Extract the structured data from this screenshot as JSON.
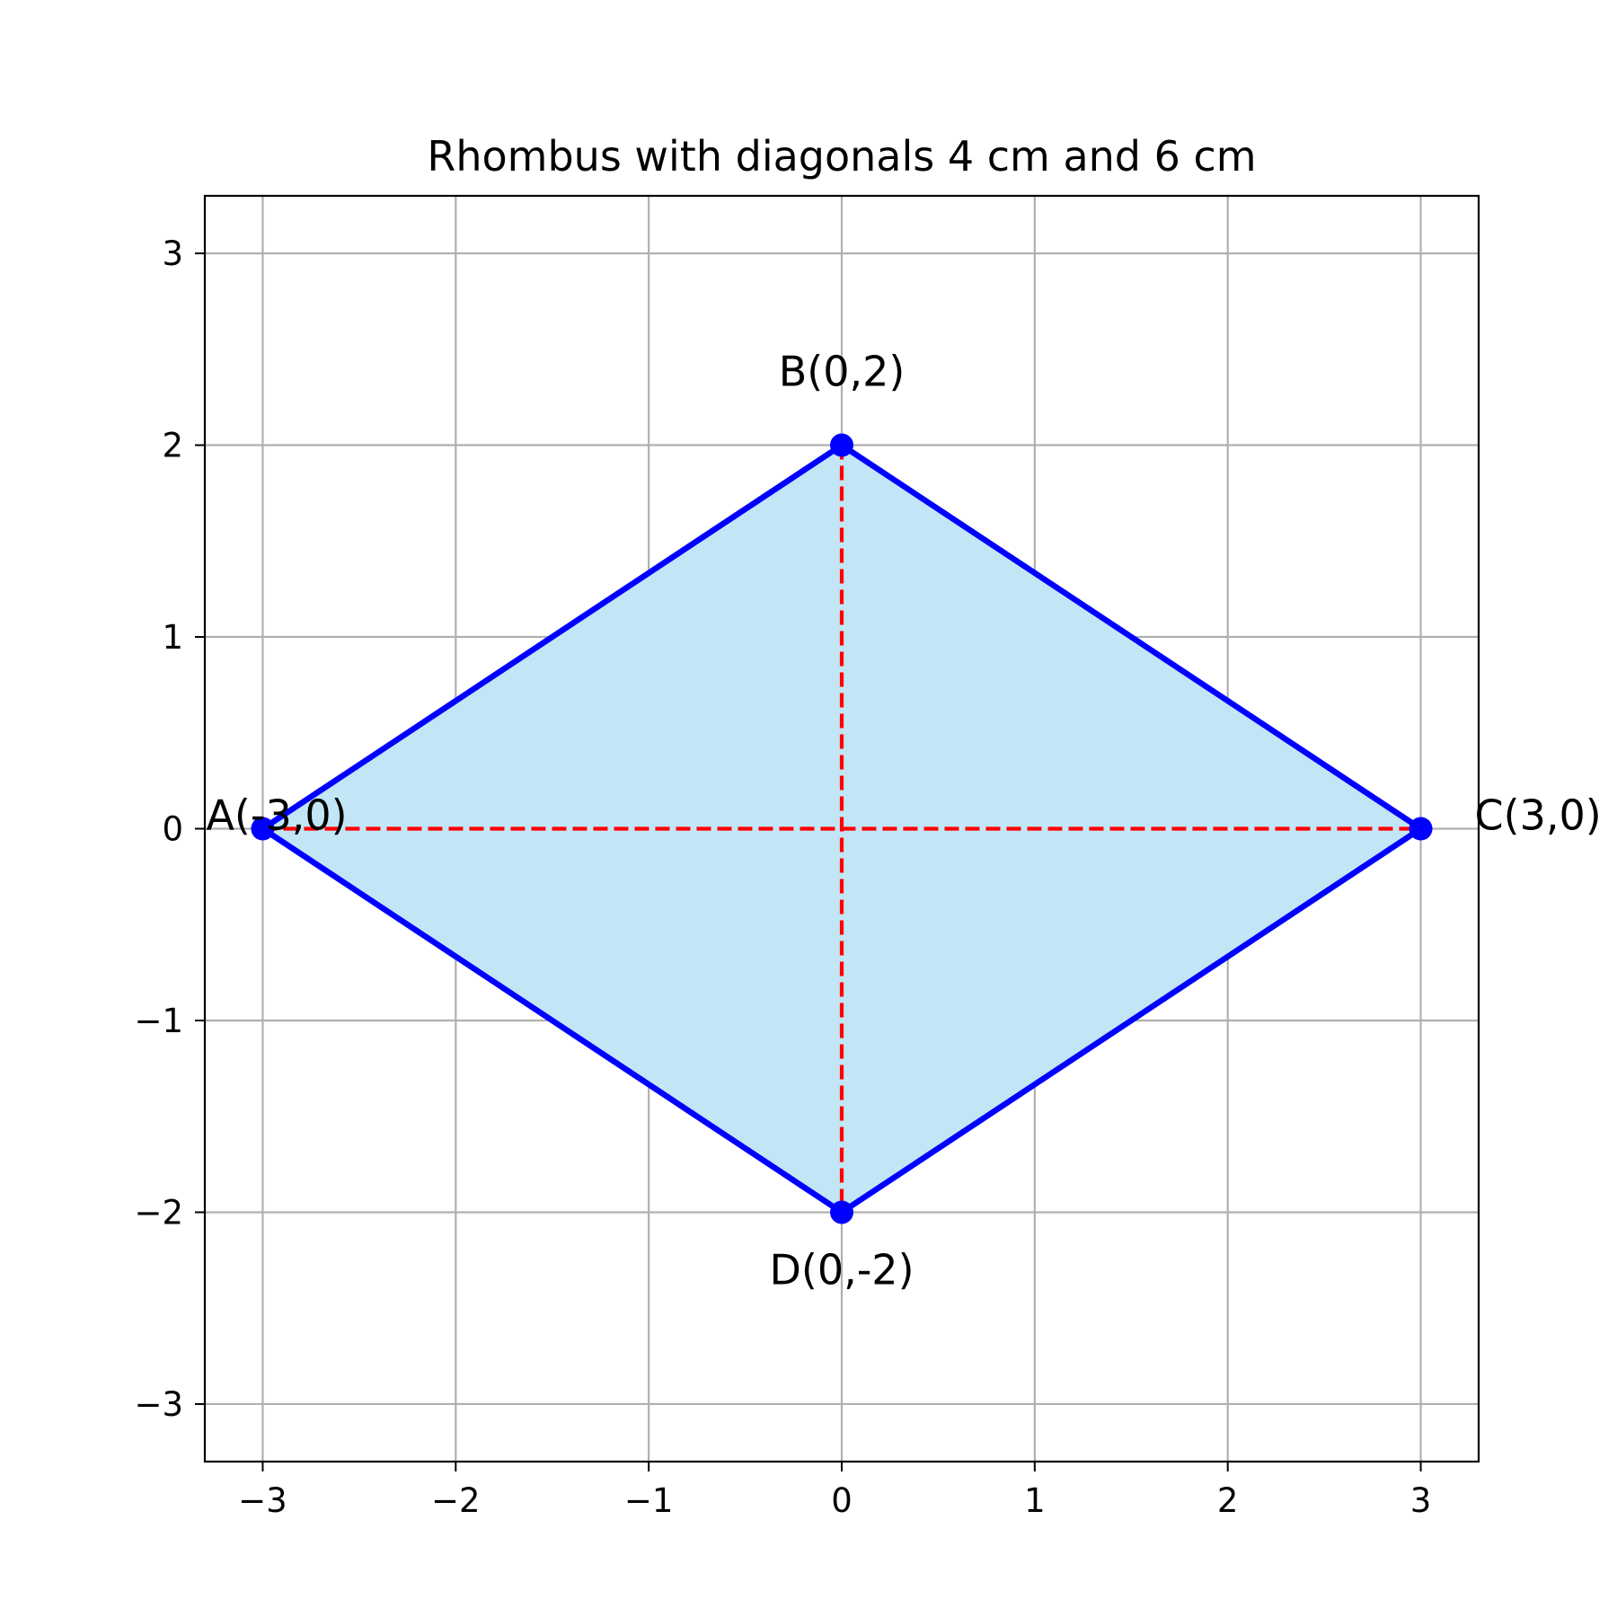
{
  "chart_data": {
    "type": "scatter",
    "title": "Rhombus with diagonals 4 cm and 6 cm",
    "xlabel": "",
    "ylabel": "",
    "xlim": [
      -3.3,
      3.3
    ],
    "ylim": [
      -3.3,
      3.3
    ],
    "xticks": [
      -3,
      -2,
      -1,
      0,
      1,
      2,
      3
    ],
    "yticks": [
      -3,
      -2,
      -1,
      0,
      1,
      2,
      3
    ],
    "xtick_labels": [
      "−3",
      "−2",
      "−1",
      "0",
      "1",
      "2",
      "3"
    ],
    "ytick_labels": [
      "−3",
      "−2",
      "−1",
      "0",
      "1",
      "2",
      "3"
    ],
    "grid": true,
    "points": [
      {
        "label": "A(-3,0)",
        "x": -3,
        "y": 0,
        "label_position": "right"
      },
      {
        "label": "B(0,2)",
        "x": 0,
        "y": 2,
        "label_position": "above"
      },
      {
        "label": "C(3,0)",
        "x": 3,
        "y": 0,
        "label_position": "right"
      },
      {
        "label": "D(0,-2)",
        "x": 0,
        "y": -2,
        "label_position": "below"
      }
    ],
    "polygon_order": [
      "A(-3,0)",
      "B(0,2)",
      "C(3,0)",
      "D(0,-2)"
    ],
    "diagonals": [
      {
        "from": "A(-3,0)",
        "to": "C(3,0)"
      },
      {
        "from": "B(0,2)",
        "to": "D(0,-2)"
      }
    ],
    "colors": {
      "fill": "#c2e6f5",
      "edge": "#0000ff",
      "points": "#0000ff",
      "diagonals": "#ff0000",
      "grid": "#b0b0b0",
      "axes": "#000000"
    }
  }
}
